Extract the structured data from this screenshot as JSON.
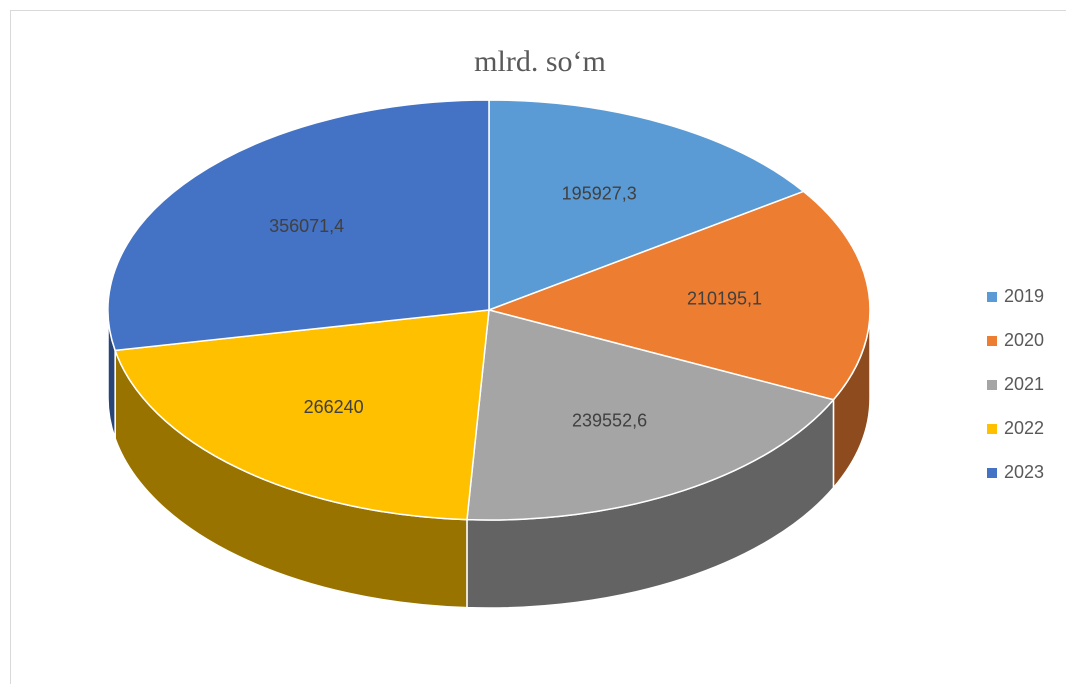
{
  "chart_data": {
    "type": "pie3d",
    "title": "mlrd. so‘m",
    "categories": [
      "2019",
      "2020",
      "2021",
      "2022",
      "2023"
    ],
    "values": [
      195927.3,
      210195.1,
      239552.6,
      266240,
      356071.4
    ],
    "value_labels": [
      "195927,3",
      "210195,1",
      "239552,6",
      "266240",
      "356071,4"
    ],
    "colors": [
      "#5b9bd5",
      "#ed7d31",
      "#a5a5a5",
      "#ffc000",
      "#4472c4"
    ],
    "legend": "right"
  }
}
